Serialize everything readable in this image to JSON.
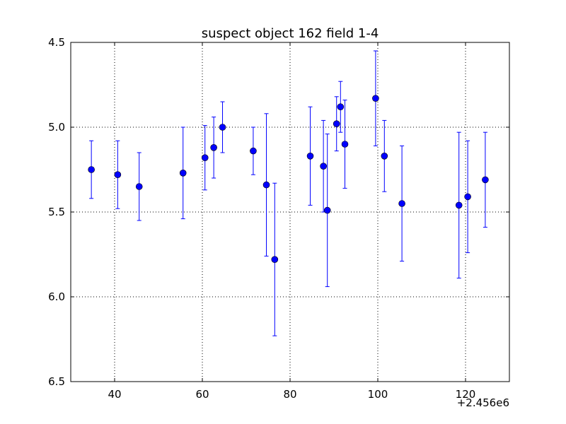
{
  "chart_data": {
    "type": "scatter",
    "title": "suspect object 162 field 1-4",
    "xlabel": "",
    "ylabel": "",
    "x_offset_label": "+2.456e6",
    "xlim": [
      30,
      130
    ],
    "ylim": [
      6.5,
      4.5
    ],
    "y_inverted": true,
    "x_ticks": [
      40,
      60,
      80,
      100,
      120
    ],
    "x_tick_labels": [
      "40",
      "60",
      "80",
      "100",
      "120"
    ],
    "y_ticks": [
      4.5,
      5.0,
      5.5,
      6.0,
      6.5
    ],
    "y_tick_labels": [
      "4.5",
      "5.0",
      "5.5",
      "6.0",
      "6.5"
    ],
    "grid": true,
    "marker_color": "#0000ff",
    "errorbar_color": "#0000ff",
    "series": [
      {
        "points": [
          {
            "x": 34.7,
            "y": 5.25,
            "err": 0.17
          },
          {
            "x": 40.7,
            "y": 5.28,
            "err": 0.2
          },
          {
            "x": 45.6,
            "y": 5.35,
            "err": 0.2
          },
          {
            "x": 55.6,
            "y": 5.27,
            "err": 0.27
          },
          {
            "x": 60.6,
            "y": 5.18,
            "err": 0.19
          },
          {
            "x": 62.6,
            "y": 5.12,
            "err": 0.18
          },
          {
            "x": 64.6,
            "y": 5.0,
            "err": 0.15
          },
          {
            "x": 71.6,
            "y": 5.14,
            "err": 0.14
          },
          {
            "x": 74.6,
            "y": 5.34,
            "err": 0.42
          },
          {
            "x": 76.5,
            "y": 5.78,
            "err": 0.45
          },
          {
            "x": 84.6,
            "y": 5.17,
            "err": 0.29
          },
          {
            "x": 87.6,
            "y": 5.23,
            "err": 0.27
          },
          {
            "x": 88.5,
            "y": 5.49,
            "err": 0.45
          },
          {
            "x": 90.6,
            "y": 4.98,
            "err": 0.16
          },
          {
            "x": 91.5,
            "y": 4.88,
            "err": 0.15
          },
          {
            "x": 92.5,
            "y": 5.1,
            "err": 0.26
          },
          {
            "x": 99.5,
            "y": 4.83,
            "err": 0.28
          },
          {
            "x": 101.5,
            "y": 5.17,
            "err": 0.21
          },
          {
            "x": 105.5,
            "y": 5.45,
            "err": 0.34
          },
          {
            "x": 118.5,
            "y": 5.46,
            "err": 0.43
          },
          {
            "x": 120.5,
            "y": 5.41,
            "err": 0.33
          },
          {
            "x": 124.5,
            "y": 5.31,
            "err": 0.28
          }
        ]
      }
    ]
  }
}
